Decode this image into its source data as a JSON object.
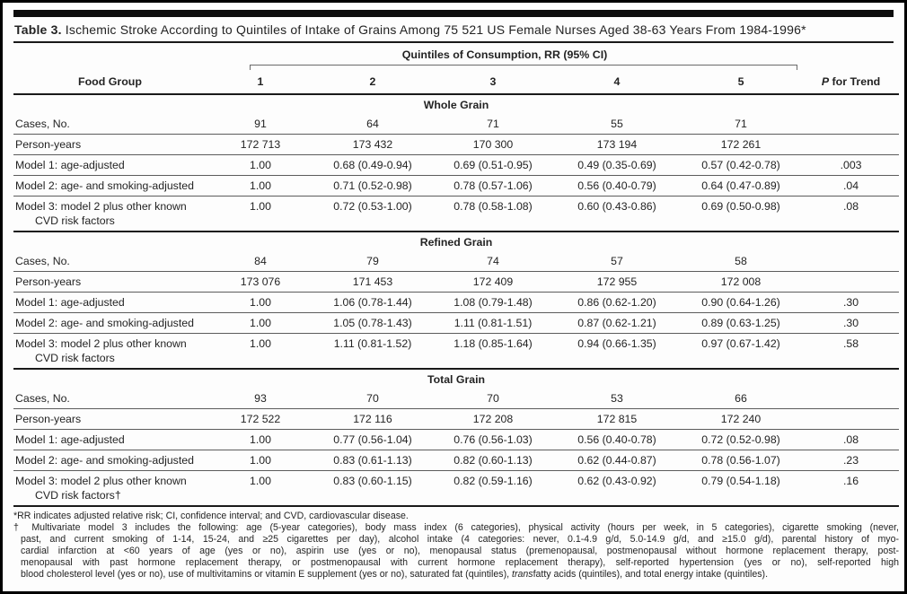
{
  "title": {
    "bold": "Table 3.",
    "rest": " Ischemic Stroke According to Quintiles of Intake of Grains Among 75 521 US Female Nurses Aged 38-63 Years From 1984-1996*"
  },
  "header": {
    "food_group": "Food Group",
    "quintiles_label": "Quintiles of Consumption, RR (95% CI)",
    "quintile_numbers": [
      "1",
      "2",
      "3",
      "4",
      "5"
    ],
    "p_italic": "P",
    "p_rest": " for Trend"
  },
  "sections": [
    {
      "name": "Whole Grain",
      "rows": [
        {
          "label": "Cases, No.",
          "values": [
            "91",
            "64",
            "71",
            "55",
            "71"
          ],
          "p": ""
        },
        {
          "label": "Person-years",
          "values": [
            "172 713",
            "173 432",
            "170 300",
            "173 194",
            "172 261"
          ],
          "p": ""
        },
        {
          "label": "Model 1: age-adjusted",
          "values": [
            "1.00",
            "0.68 (0.49-0.94)",
            "0.69 (0.51-0.95)",
            "0.49 (0.35-0.69)",
            "0.57 (0.42-0.78)"
          ],
          "p": ".003"
        },
        {
          "label": "Model 2: age- and smoking-adjusted",
          "values": [
            "1.00",
            "0.71 (0.52-0.98)",
            "0.78 (0.57-1.06)",
            "0.56 (0.40-0.79)",
            "0.64 (0.47-0.89)"
          ],
          "p": ".04"
        },
        {
          "label": "Model 3: model 2 plus other known",
          "label2": "CVD risk factors",
          "values": [
            "1.00",
            "0.72 (0.53-1.00)",
            "0.78 (0.58-1.08)",
            "0.60 (0.43-0.86)",
            "0.69 (0.50-0.98)"
          ],
          "p": ".08"
        }
      ]
    },
    {
      "name": "Refined Grain",
      "rows": [
        {
          "label": "Cases, No.",
          "values": [
            "84",
            "79",
            "74",
            "57",
            "58"
          ],
          "p": ""
        },
        {
          "label": "Person-years",
          "values": [
            "173 076",
            "171 453",
            "172 409",
            "172 955",
            "172 008"
          ],
          "p": ""
        },
        {
          "label": "Model 1: age-adjusted",
          "values": [
            "1.00",
            "1.06 (0.78-1.44)",
            "1.08 (0.79-1.48)",
            "0.86 (0.62-1.20)",
            "0.90 (0.64-1.26)"
          ],
          "p": ".30"
        },
        {
          "label": "Model 2: age- and smoking-adjusted",
          "values": [
            "1.00",
            "1.05 (0.78-1.43)",
            "1.11 (0.81-1.51)",
            "0.87 (0.62-1.21)",
            "0.89 (0.63-1.25)"
          ],
          "p": ".30"
        },
        {
          "label": "Model 3: model 2 plus other known",
          "label2": "CVD risk factors",
          "values": [
            "1.00",
            "1.11 (0.81-1.52)",
            "1.18 (0.85-1.64)",
            "0.94 (0.66-1.35)",
            "0.97 (0.67-1.42)"
          ],
          "p": ".58"
        }
      ]
    },
    {
      "name": "Total Grain",
      "rows": [
        {
          "label": "Cases, No.",
          "values": [
            "93",
            "70",
            "70",
            "53",
            "66"
          ],
          "p": ""
        },
        {
          "label": "Person-years",
          "values": [
            "172 522",
            "172 116",
            "172 208",
            "172 815",
            "172 240"
          ],
          "p": ""
        },
        {
          "label": "Model 1: age-adjusted",
          "values": [
            "1.00",
            "0.77 (0.56-1.04)",
            "0.76 (0.56-1.03)",
            "0.56 (0.40-0.78)",
            "0.72 (0.52-0.98)"
          ],
          "p": ".08"
        },
        {
          "label": "Model 2: age- and smoking-adjusted",
          "values": [
            "1.00",
            "0.83 (0.61-1.13)",
            "0.82 (0.60-1.13)",
            "0.62 (0.44-0.87)",
            "0.78 (0.56-1.07)"
          ],
          "p": ".23"
        },
        {
          "label": "Model 3: model 2 plus other known",
          "label2": "CVD risk factors†",
          "values": [
            "1.00",
            "0.83 (0.60-1.15)",
            "0.82 (0.59-1.16)",
            "0.62 (0.43-0.92)",
            "0.79 (0.54-1.18)"
          ],
          "p": ".16"
        }
      ]
    }
  ],
  "footnotes": {
    "star": "*RR indicates adjusted relative risk; CI, confidence interval; and CVD, cardiovascular disease.",
    "dagger_lines": [
      "† Multivariate model 3 includes the following: age (5-year categories), body mass index (6 categories), physical activity (hours per week, in 5 categories), cigarette smoking (never,",
      "past, and current smoking of 1-14, 15-24, and ≥25 cigarettes per day), alcohol intake (4 categories: never, 0.1-4.9 g/d, 5.0-14.9 g/d, and ≥15.0 g/d), parental history of myo-",
      "cardial infarction at <60 years of age (yes or no), aspirin use (yes or no), menopausal status (premenopausal, postmenopausal without hormone replacement therapy, post-",
      "menopausal with past hormone replacement therapy, or postmenopausal with current hormone replacement therapy), self-reported hypertension (yes or no), self-reported high"
    ],
    "dagger_last_pre": "blood cholesterol level (yes or no), use of multivitamins or vitamin E supplement (yes or no), saturated fat (quintiles), ",
    "dagger_last_italic": "trans",
    "dagger_last_post": "fatty acids (quintiles), and total energy intake (quintiles)."
  }
}
